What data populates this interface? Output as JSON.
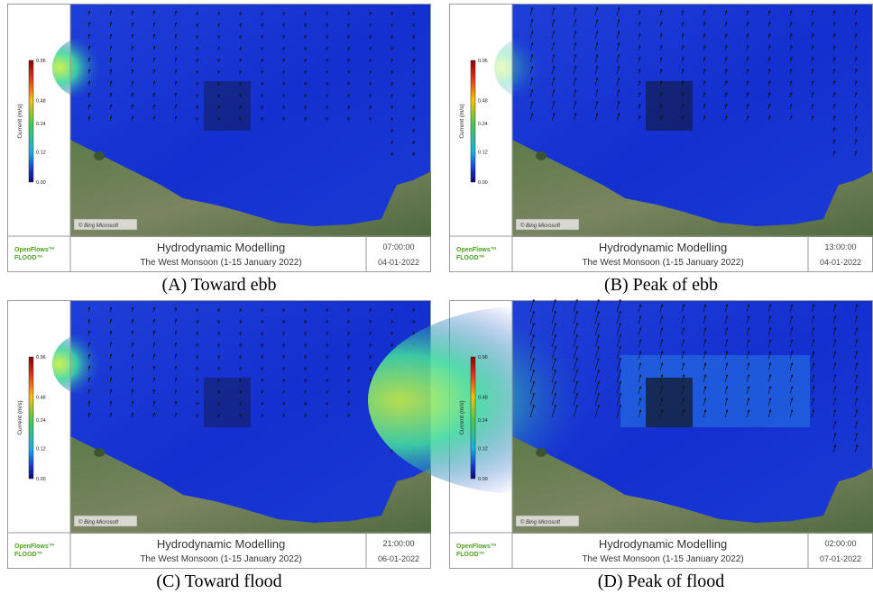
{
  "panels": [
    {
      "colorbar": {
        "label": "Current (m/s)",
        "ticks": [
          "0.96",
          "0.48",
          "0.24",
          "0.12",
          "0.00"
        ]
      },
      "attribution": "© Bing Microsoft",
      "logo": [
        "OpenFlows™",
        "FLOOD™"
      ],
      "title": "Hydrodynamic Modelling",
      "subtitle": "The West Monsoon (1-15 January 2022)",
      "time": "07:00:00",
      "date": "04-01-2022",
      "caption": "(A) Toward ebb"
    },
    {
      "colorbar": {
        "label": "Current (m/s)",
        "ticks": [
          "0.96",
          "0.48",
          "0.24",
          "0.12",
          "0.00"
        ]
      },
      "attribution": "© Bing Microsoft",
      "logo": [
        "OpenFlows™",
        "FLOOD™"
      ],
      "title": "Hydrodynamic Modelling",
      "subtitle": "The West Monsoon (1-15 January 2022)",
      "time": "13:00:00",
      "date": "04-01-2022",
      "caption": "(B) Peak of ebb"
    },
    {
      "colorbar": {
        "label": "Current (m/s)",
        "ticks": [
          "0.96",
          "0.48",
          "0.24",
          "0.12",
          "0.00"
        ]
      },
      "attribution": "© Bing Microsoft",
      "logo": [
        "OpenFlows™",
        "FLOOD™"
      ],
      "title": "Hydrodynamic Modelling",
      "subtitle": "The West Monsoon (1-15 January 2022)",
      "time": "21:00:00",
      "date": "06-01-2022",
      "caption": "(C) Toward flood"
    },
    {
      "colorbar": {
        "label": "Current (m/s)",
        "ticks": [
          "0.96",
          "0.48",
          "0.24",
          "0.12",
          "0.00"
        ]
      },
      "attribution": "© Bing Microsoft",
      "logo": [
        "OpenFlows™",
        "FLOOD™"
      ],
      "title": "Hydrodynamic Modelling",
      "subtitle": "The West Monsoon (1-15 January 2022)",
      "time": "02:00:00",
      "date": "07-01-2022",
      "caption": "(D) Peak of flood"
    }
  ]
}
